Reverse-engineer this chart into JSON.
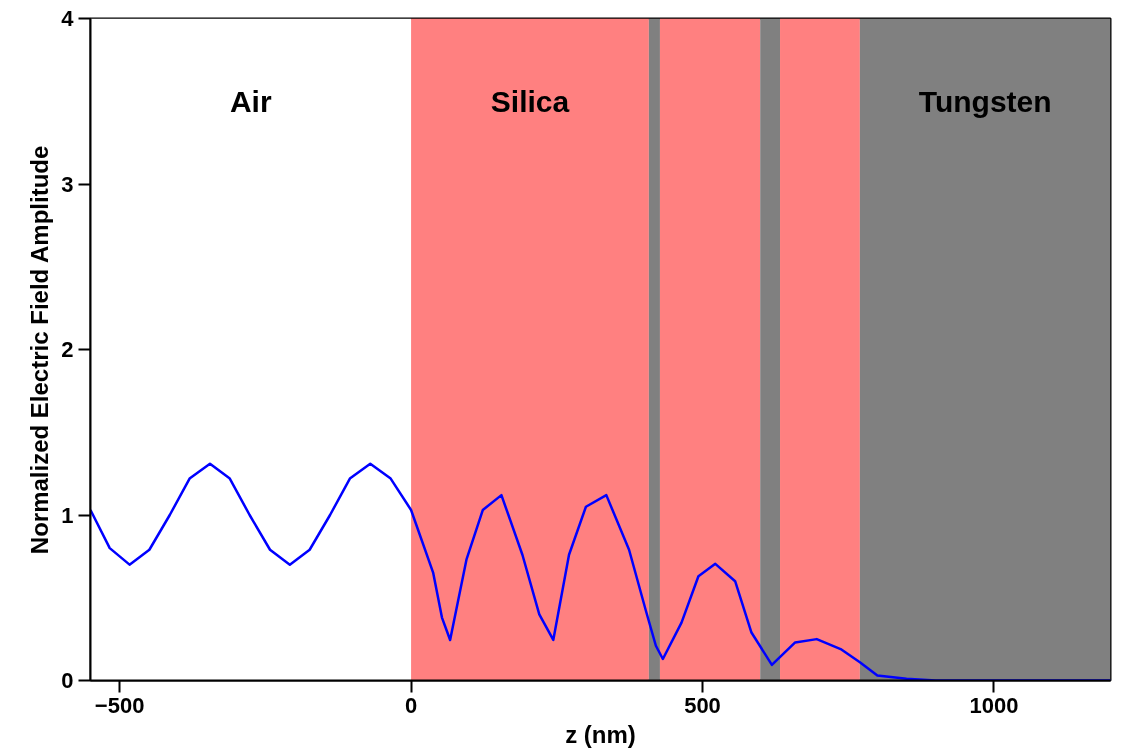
{
  "chart_data": {
    "type": "line",
    "xlabel": "z (nm)",
    "ylabel": "Normalized Electric Field Amplitude",
    "xlim": [
      -550,
      1200
    ],
    "ylim": [
      0,
      4
    ],
    "xticks": [
      -500,
      0,
      500,
      1000
    ],
    "yticks": [
      0,
      1,
      2,
      3,
      4
    ],
    "grid": false,
    "marker": "none",
    "line_style": "solid",
    "series": [
      {
        "color": "#0000ff",
        "x": [
          -550,
          -517,
          -483,
          -449,
          -414,
          -380,
          -345,
          -311,
          -277,
          -242,
          -208,
          -174,
          -139,
          -105,
          -70,
          -35,
          0,
          38,
          53,
          67,
          95,
          123,
          155,
          191,
          220,
          244,
          271,
          300,
          335,
          374,
          403,
          420,
          432,
          464,
          493,
          522,
          556,
          584,
          619,
          659,
          696,
          737,
          770,
          800,
          850,
          900,
          1000,
          1200
        ],
        "values": [
          1.03,
          0.8,
          0.7,
          0.79,
          1.0,
          1.22,
          1.31,
          1.22,
          1.0,
          0.79,
          0.7,
          0.79,
          1.0,
          1.22,
          1.31,
          1.22,
          1.03,
          0.65,
          0.38,
          0.245,
          0.73,
          1.03,
          1.12,
          0.76,
          0.4,
          0.245,
          0.76,
          1.05,
          1.12,
          0.79,
          0.42,
          0.21,
          0.13,
          0.35,
          0.63,
          0.705,
          0.6,
          0.29,
          0.094,
          0.23,
          0.25,
          0.19,
          0.11,
          0.03,
          0.01,
          0,
          0,
          0
        ]
      }
    ],
    "bands": [
      {
        "axis": "x",
        "from": -550,
        "to": 0,
        "color": "#ffffff",
        "label": "Air"
      },
      {
        "axis": "x",
        "from": 0,
        "to": 408,
        "color": "#ff8080",
        "label": "Silica"
      },
      {
        "axis": "x",
        "from": 408,
        "to": 427,
        "color": "#808080"
      },
      {
        "axis": "x",
        "from": 427,
        "to": 599,
        "color": "#ff8080"
      },
      {
        "axis": "x",
        "from": 599,
        "to": 633,
        "color": "#808080"
      },
      {
        "axis": "x",
        "from": 633,
        "to": 770,
        "color": "#ff8080"
      },
      {
        "axis": "x",
        "from": 770,
        "to": 1200,
        "color": "#808080",
        "label": "Tungsten"
      }
    ]
  }
}
